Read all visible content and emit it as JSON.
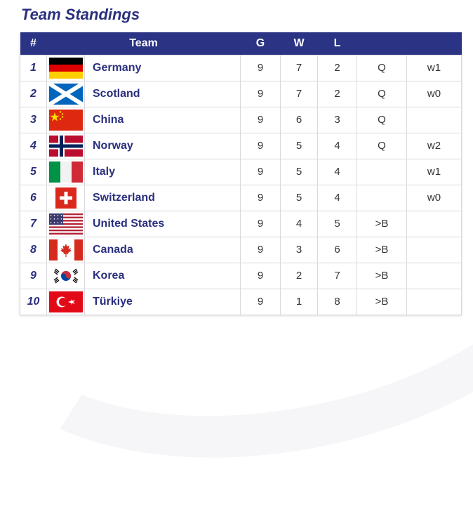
{
  "page": {
    "title": "Team Standings"
  },
  "table": {
    "headers": {
      "rank": "#",
      "team": "Team",
      "g": "G",
      "w": "W",
      "l": "L"
    },
    "rows": [
      {
        "rank": "1",
        "team": "Germany",
        "flag": "germany-flag",
        "g": "9",
        "w": "7",
        "l": "2",
        "q": "Q",
        "note": "w1"
      },
      {
        "rank": "2",
        "team": "Scotland",
        "flag": "scotland-flag",
        "g": "9",
        "w": "7",
        "l": "2",
        "q": "Q",
        "note": "w0"
      },
      {
        "rank": "3",
        "team": "China",
        "flag": "china-flag",
        "g": "9",
        "w": "6",
        "l": "3",
        "q": "Q",
        "note": ""
      },
      {
        "rank": "4",
        "team": "Norway",
        "flag": "norway-flag",
        "g": "9",
        "w": "5",
        "l": "4",
        "q": "Q",
        "note": "w2"
      },
      {
        "rank": "5",
        "team": "Italy",
        "flag": "italy-flag",
        "g": "9",
        "w": "5",
        "l": "4",
        "q": "",
        "note": "w1"
      },
      {
        "rank": "6",
        "team": "Switzerland",
        "flag": "switzerland-flag",
        "g": "9",
        "w": "5",
        "l": "4",
        "q": "",
        "note": "w0"
      },
      {
        "rank": "7",
        "team": "United States",
        "flag": "usa-flag",
        "g": "9",
        "w": "4",
        "l": "5",
        "q": ">B",
        "note": ""
      },
      {
        "rank": "8",
        "team": "Canada",
        "flag": "canada-flag",
        "g": "9",
        "w": "3",
        "l": "6",
        "q": ">B",
        "note": ""
      },
      {
        "rank": "9",
        "team": "Korea",
        "flag": "korea-flag",
        "g": "9",
        "w": "2",
        "l": "7",
        "q": ">B",
        "note": ""
      },
      {
        "rank": "10",
        "team": "Türkiye",
        "flag": "turkiye-flag",
        "g": "9",
        "w": "1",
        "l": "8",
        "q": ">B",
        "note": ""
      }
    ]
  },
  "colors": {
    "header_bg": "#2a3384",
    "title": "#2a2f7d",
    "border": "#d9d9de"
  }
}
